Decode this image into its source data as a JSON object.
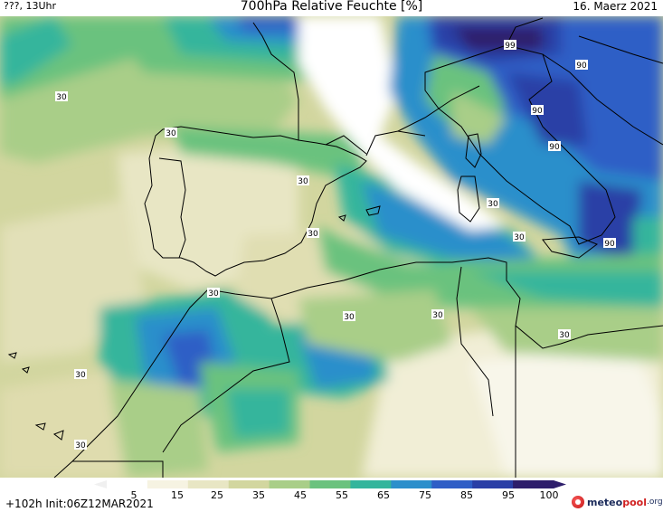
{
  "header": {
    "location": "???, 13Uhr",
    "title": "700hPa Relative Feuchte [%]",
    "date": "16. Maerz 2021"
  },
  "footer": {
    "run_info": "+102h  Init:06Z12MAR2021",
    "logo_part1": "meteo",
    "logo_part2": "pool",
    "logo_part3": ".org"
  },
  "colorbar": {
    "labels": [
      "5",
      "15",
      "25",
      "35",
      "45",
      "55",
      "65",
      "75",
      "85",
      "95",
      "100"
    ],
    "colors": [
      "#ffffff",
      "#f6f3e2",
      "#e8e6c4",
      "#d2d69f",
      "#a9ce88",
      "#6bc27e",
      "#34b59c",
      "#2c8fcb",
      "#2f5ec6",
      "#2a3fa6",
      "#2e1e6b"
    ]
  },
  "contour_labels": [
    {
      "text": "30"
    },
    {
      "text": "30"
    },
    {
      "text": "30"
    },
    {
      "text": "30"
    },
    {
      "text": "30"
    },
    {
      "text": "30"
    },
    {
      "text": "30"
    },
    {
      "text": "30"
    },
    {
      "text": "30"
    },
    {
      "text": "30"
    },
    {
      "text": "30"
    },
    {
      "text": "30"
    },
    {
      "text": "99"
    },
    {
      "text": "90"
    },
    {
      "text": "90"
    },
    {
      "text": "90"
    },
    {
      "text": "90"
    }
  ]
}
